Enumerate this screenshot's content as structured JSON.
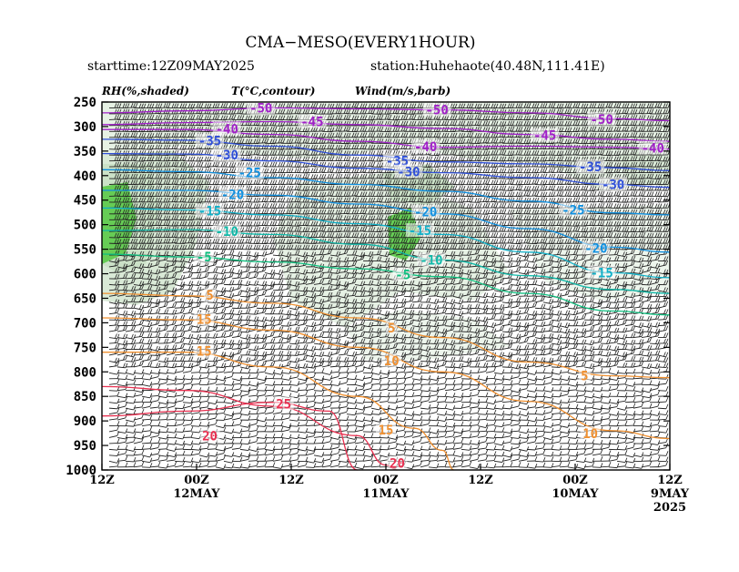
{
  "chart_data": {
    "type": "heatmap",
    "title": "CMA−MESO(EVERY1HOUR)",
    "starttime": "starttime:12Z09MAY2025",
    "station": "station:Huhehaote(40.48N,111.41E)",
    "legend": {
      "rh": "RH(%,shaded)",
      "temp": "T(°C,contour)",
      "wind": "Wind(m/s,barb)"
    },
    "y_axis": {
      "label": "",
      "scale": "pressure",
      "range": [
        1000,
        250
      ],
      "ticks": [
        "250",
        "300",
        "350",
        "400",
        "450",
        "500",
        "550",
        "600",
        "650",
        "700",
        "750",
        "800",
        "850",
        "900",
        "950",
        "1000"
      ]
    },
    "x_axis": {
      "label": "",
      "direction": "time increases right-to-left",
      "ticks": [
        {
          "top": "12Z",
          "bottom": "",
          "bottom2": ""
        },
        {
          "top": "00Z",
          "bottom": "12MAY",
          "bottom2": ""
        },
        {
          "top": "12Z",
          "bottom": "",
          "bottom2": ""
        },
        {
          "top": "00Z",
          "bottom": "11MAY",
          "bottom2": ""
        },
        {
          "top": "12Z",
          "bottom": "",
          "bottom2": ""
        },
        {
          "top": "00Z",
          "bottom": "10MAY",
          "bottom2": ""
        },
        {
          "top": "12Z",
          "bottom": "9MAY",
          "bottom2": "2025"
        }
      ]
    },
    "temperature_contours": [
      {
        "label": "-50",
        "color": "#a020c8",
        "labels": [
          {
            "t": 0.28,
            "p": 262
          },
          {
            "t": 0.59,
            "p": 266
          },
          {
            "t": 0.88,
            "p": 285
          }
        ],
        "points": [
          [
            0,
            272
          ],
          [
            0.15,
            268
          ],
          [
            0.3,
            262
          ],
          [
            0.45,
            264
          ],
          [
            0.6,
            266
          ],
          [
            0.75,
            272
          ],
          [
            0.9,
            284
          ],
          [
            1,
            288
          ]
        ]
      },
      {
        "label": "-45",
        "color": "#a020c8",
        "labels": [
          {
            "t": 0.37,
            "p": 290
          },
          {
            "t": 0.78,
            "p": 318
          }
        ],
        "points": [
          [
            0,
            296
          ],
          [
            0.15,
            292
          ],
          [
            0.3,
            290
          ],
          [
            0.45,
            296
          ],
          [
            0.6,
            304
          ],
          [
            0.75,
            316
          ],
          [
            0.9,
            326
          ],
          [
            1,
            330
          ]
        ]
      },
      {
        "label": "-40",
        "color": "#a020c8",
        "labels": [
          {
            "t": 0.22,
            "p": 305
          },
          {
            "t": 0.57,
            "p": 341
          },
          {
            "t": 0.97,
            "p": 344
          }
        ],
        "points": [
          [
            0,
            306
          ],
          [
            0.15,
            306
          ],
          [
            0.3,
            316
          ],
          [
            0.45,
            330
          ],
          [
            0.6,
            342
          ],
          [
            0.75,
            340
          ],
          [
            0.9,
            342
          ],
          [
            1,
            346
          ]
        ]
      },
      {
        "label": "-35",
        "color": "#3050d8",
        "labels": [
          {
            "t": 0.19,
            "p": 329
          },
          {
            "t": 0.52,
            "p": 370
          },
          {
            "t": 0.86,
            "p": 382
          }
        ],
        "points": [
          [
            0,
            326
          ],
          [
            0.15,
            328
          ],
          [
            0.3,
            340
          ],
          [
            0.45,
            358
          ],
          [
            0.6,
            372
          ],
          [
            0.75,
            376
          ],
          [
            0.9,
            384
          ],
          [
            1,
            390
          ]
        ]
      },
      {
        "label": "-30",
        "color": "#3050d8",
        "labels": [
          {
            "t": 0.22,
            "p": 358
          },
          {
            "t": 0.54,
            "p": 392
          },
          {
            "t": 0.9,
            "p": 418
          }
        ],
        "points": [
          [
            0,
            355
          ],
          [
            0.15,
            356
          ],
          [
            0.3,
            370
          ],
          [
            0.45,
            385
          ],
          [
            0.6,
            394
          ],
          [
            0.75,
            404
          ],
          [
            0.9,
            418
          ],
          [
            1,
            424
          ]
        ]
      },
      {
        "label": "-25",
        "color": "#1090e0",
        "labels": [
          {
            "t": 0.26,
            "p": 394
          },
          {
            "t": 0.83,
            "p": 470
          }
        ],
        "points": [
          [
            0,
            388
          ],
          [
            0.15,
            392
          ],
          [
            0.3,
            404
          ],
          [
            0.45,
            418
          ],
          [
            0.6,
            432
          ],
          [
            0.75,
            452
          ],
          [
            0.9,
            476
          ],
          [
            1,
            480
          ]
        ]
      },
      {
        "label": "-20",
        "color": "#1090e0",
        "labels": [
          {
            "t": 0.23,
            "p": 438
          },
          {
            "t": 0.57,
            "p": 474
          },
          {
            "t": 0.87,
            "p": 548
          }
        ],
        "points": [
          [
            0,
            430
          ],
          [
            0.15,
            430
          ],
          [
            0.3,
            440
          ],
          [
            0.45,
            458
          ],
          [
            0.6,
            478
          ],
          [
            0.75,
            508
          ],
          [
            0.9,
            546
          ],
          [
            1,
            556
          ]
        ]
      },
      {
        "label": "-15",
        "color": "#10b0c8",
        "labels": [
          {
            "t": 0.19,
            "p": 472
          },
          {
            "t": 0.56,
            "p": 512
          },
          {
            "t": 0.88,
            "p": 598
          }
        ],
        "points": [
          [
            0,
            466
          ],
          [
            0.15,
            470
          ],
          [
            0.3,
            480
          ],
          [
            0.45,
            498
          ],
          [
            0.6,
            520
          ],
          [
            0.75,
            556
          ],
          [
            0.9,
            598
          ],
          [
            1,
            608
          ]
        ]
      },
      {
        "label": "-10",
        "color": "#10b8a8",
        "labels": [
          {
            "t": 0.22,
            "p": 514
          },
          {
            "t": 0.58,
            "p": 572
          }
        ],
        "points": [
          [
            0,
            512
          ],
          [
            0.15,
            510
          ],
          [
            0.3,
            520
          ],
          [
            0.45,
            540
          ],
          [
            0.6,
            572
          ],
          [
            0.75,
            604
          ],
          [
            0.9,
            632
          ],
          [
            1,
            640
          ]
        ]
      },
      {
        "label": "-5",
        "color": "#10c080",
        "labels": [
          {
            "t": 0.18,
            "p": 566
          },
          {
            "t": 0.53,
            "p": 602
          }
        ],
        "points": [
          [
            0,
            560
          ],
          [
            0.15,
            566
          ],
          [
            0.3,
            576
          ],
          [
            0.45,
            590
          ],
          [
            0.6,
            606
          ],
          [
            0.75,
            640
          ],
          [
            0.9,
            676
          ],
          [
            1,
            684
          ]
        ]
      },
      {
        "label": "5",
        "color": "#f09030",
        "labels": [
          {
            "t": 0.19,
            "p": 644
          },
          {
            "t": 0.51,
            "p": 710
          },
          {
            "t": 0.85,
            "p": 808
          }
        ],
        "points": [
          [
            0,
            640
          ],
          [
            0.15,
            645
          ],
          [
            0.3,
            660
          ],
          [
            0.45,
            690
          ],
          [
            0.6,
            730
          ],
          [
            0.75,
            780
          ],
          [
            0.9,
            808
          ],
          [
            1,
            812
          ]
        ]
      },
      {
        "label": "10",
        "color": "#f09030",
        "labels": [
          {
            "t": 0.51,
            "p": 777
          },
          {
            "t": 0.86,
            "p": 926
          }
        ],
        "points": [
          [
            0,
            690
          ],
          [
            0.15,
            694
          ],
          [
            0.3,
            715
          ],
          [
            0.45,
            750
          ],
          [
            0.6,
            800
          ],
          [
            0.75,
            860
          ],
          [
            0.9,
            920
          ],
          [
            1,
            936
          ]
        ]
      },
      {
        "label": "15",
        "color": "#f09030",
        "labels": [
          {
            "t": 0.18,
            "p": 693
          },
          {
            "t": 0.18,
            "p": 758
          },
          {
            "t": 0.5,
            "p": 918
          }
        ],
        "points": [
          [
            0,
            760
          ],
          [
            0.15,
            760
          ],
          [
            0.3,
            790
          ],
          [
            0.45,
            850
          ],
          [
            0.55,
            915
          ],
          [
            0.6,
            960
          ],
          [
            0.62,
            1000
          ]
        ]
      },
      {
        "label": "20",
        "color": "#e83050",
        "labels": [
          {
            "t": 0.19,
            "p": 930
          },
          {
            "t": 0.52,
            "p": 986
          }
        ],
        "points": [
          [
            0,
            830
          ],
          [
            0.15,
            838
          ],
          [
            0.3,
            870
          ],
          [
            0.45,
            930
          ],
          [
            0.5,
            990
          ],
          [
            0.52,
            1000
          ]
        ]
      },
      {
        "label": "25",
        "color": "#e83050",
        "labels": [
          {
            "t": 0.32,
            "p": 865
          }
        ],
        "points": [
          [
            0,
            890
          ],
          [
            0.15,
            880
          ],
          [
            0.3,
            862
          ],
          [
            0.4,
            880
          ],
          [
            0.45,
            1000
          ]
        ]
      }
    ]
  }
}
